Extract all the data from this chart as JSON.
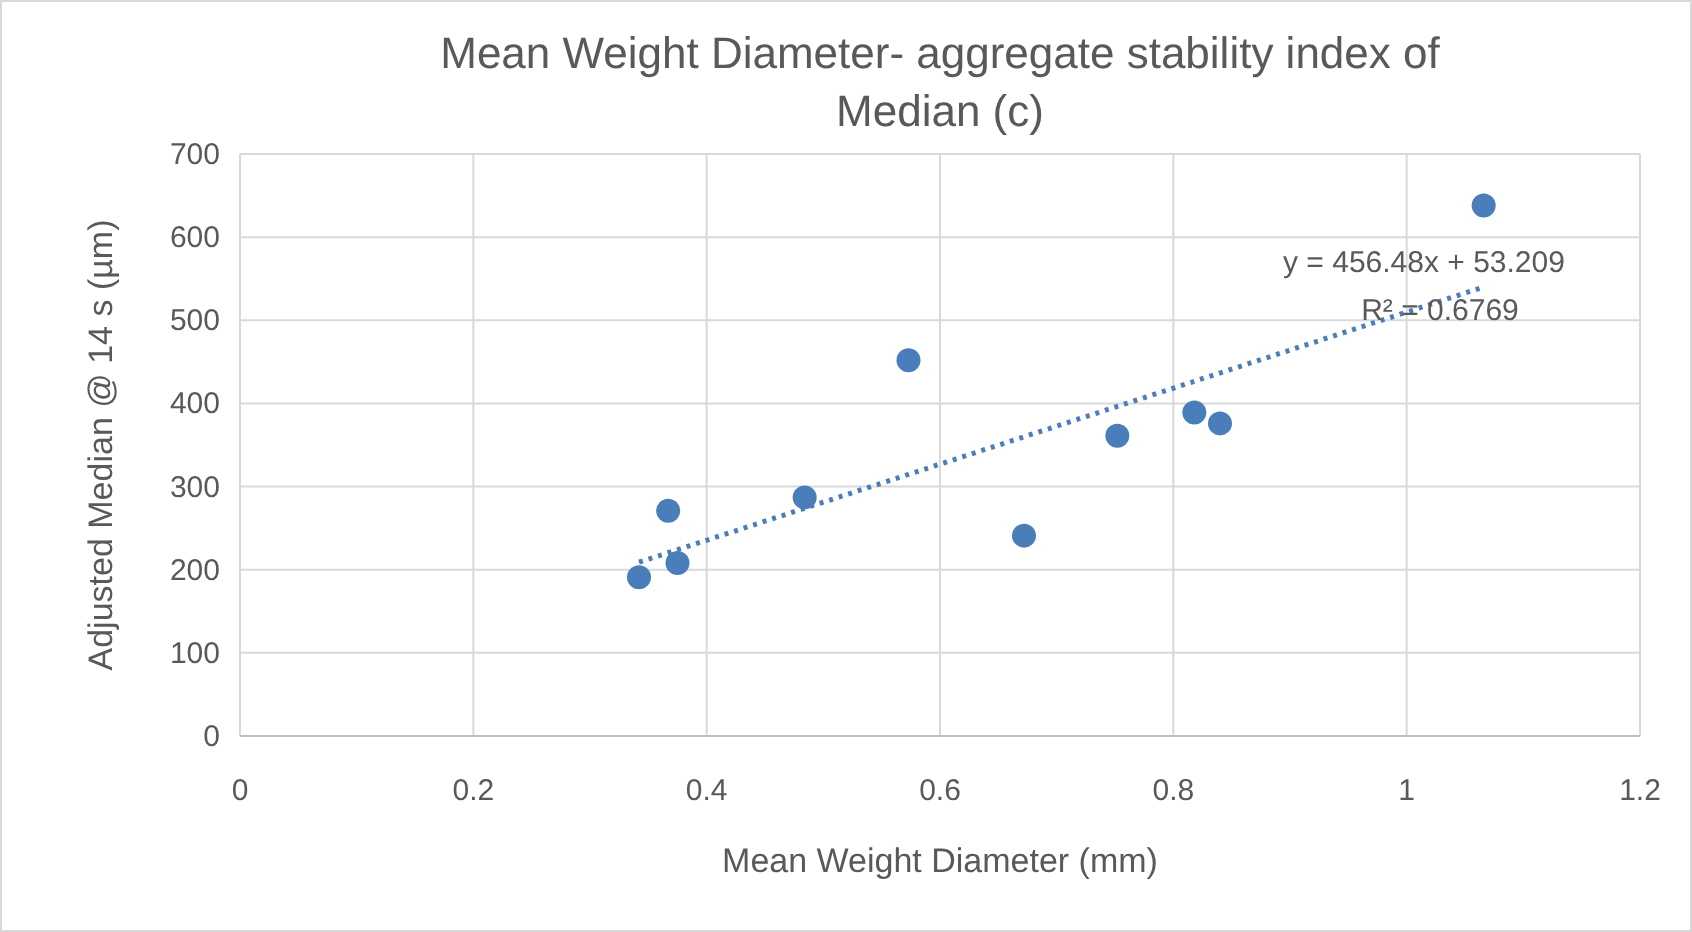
{
  "chart_data": {
    "type": "scatter",
    "title": "Mean Weight Diameter- aggregate stability index of Median (c)",
    "xlabel": "Mean Weight Diameter (mm)",
    "ylabel": "Adjusted Median @ 14 s (µm)",
    "xlim": [
      0,
      1.2
    ],
    "xticks": [
      0,
      0.2,
      0.4,
      0.6,
      0.8,
      1,
      1.2
    ],
    "ylim": [
      0,
      700
    ],
    "yticks": [
      0,
      100,
      200,
      300,
      400,
      500,
      600,
      700
    ],
    "grid": true,
    "series": [
      {
        "color": "#4a7ebb",
        "marker": "circle",
        "x": [
          0.342,
          0.367,
          0.375,
          0.484,
          0.573,
          0.672,
          0.752,
          0.818,
          0.84,
          1.066
        ],
        "values": [
          191,
          271,
          208,
          287,
          452,
          241,
          361,
          389,
          376,
          638
        ]
      },
      {
        "type": "line",
        "color": "#4a7ebb",
        "line_style": "dotted",
        "marker": "none",
        "x": [
          0.342,
          1.066
        ],
        "values": [
          209,
          540
        ]
      }
    ],
    "annotations": [
      "y = 456.48x + 53.209",
      "R² = 0.6769"
    ]
  }
}
